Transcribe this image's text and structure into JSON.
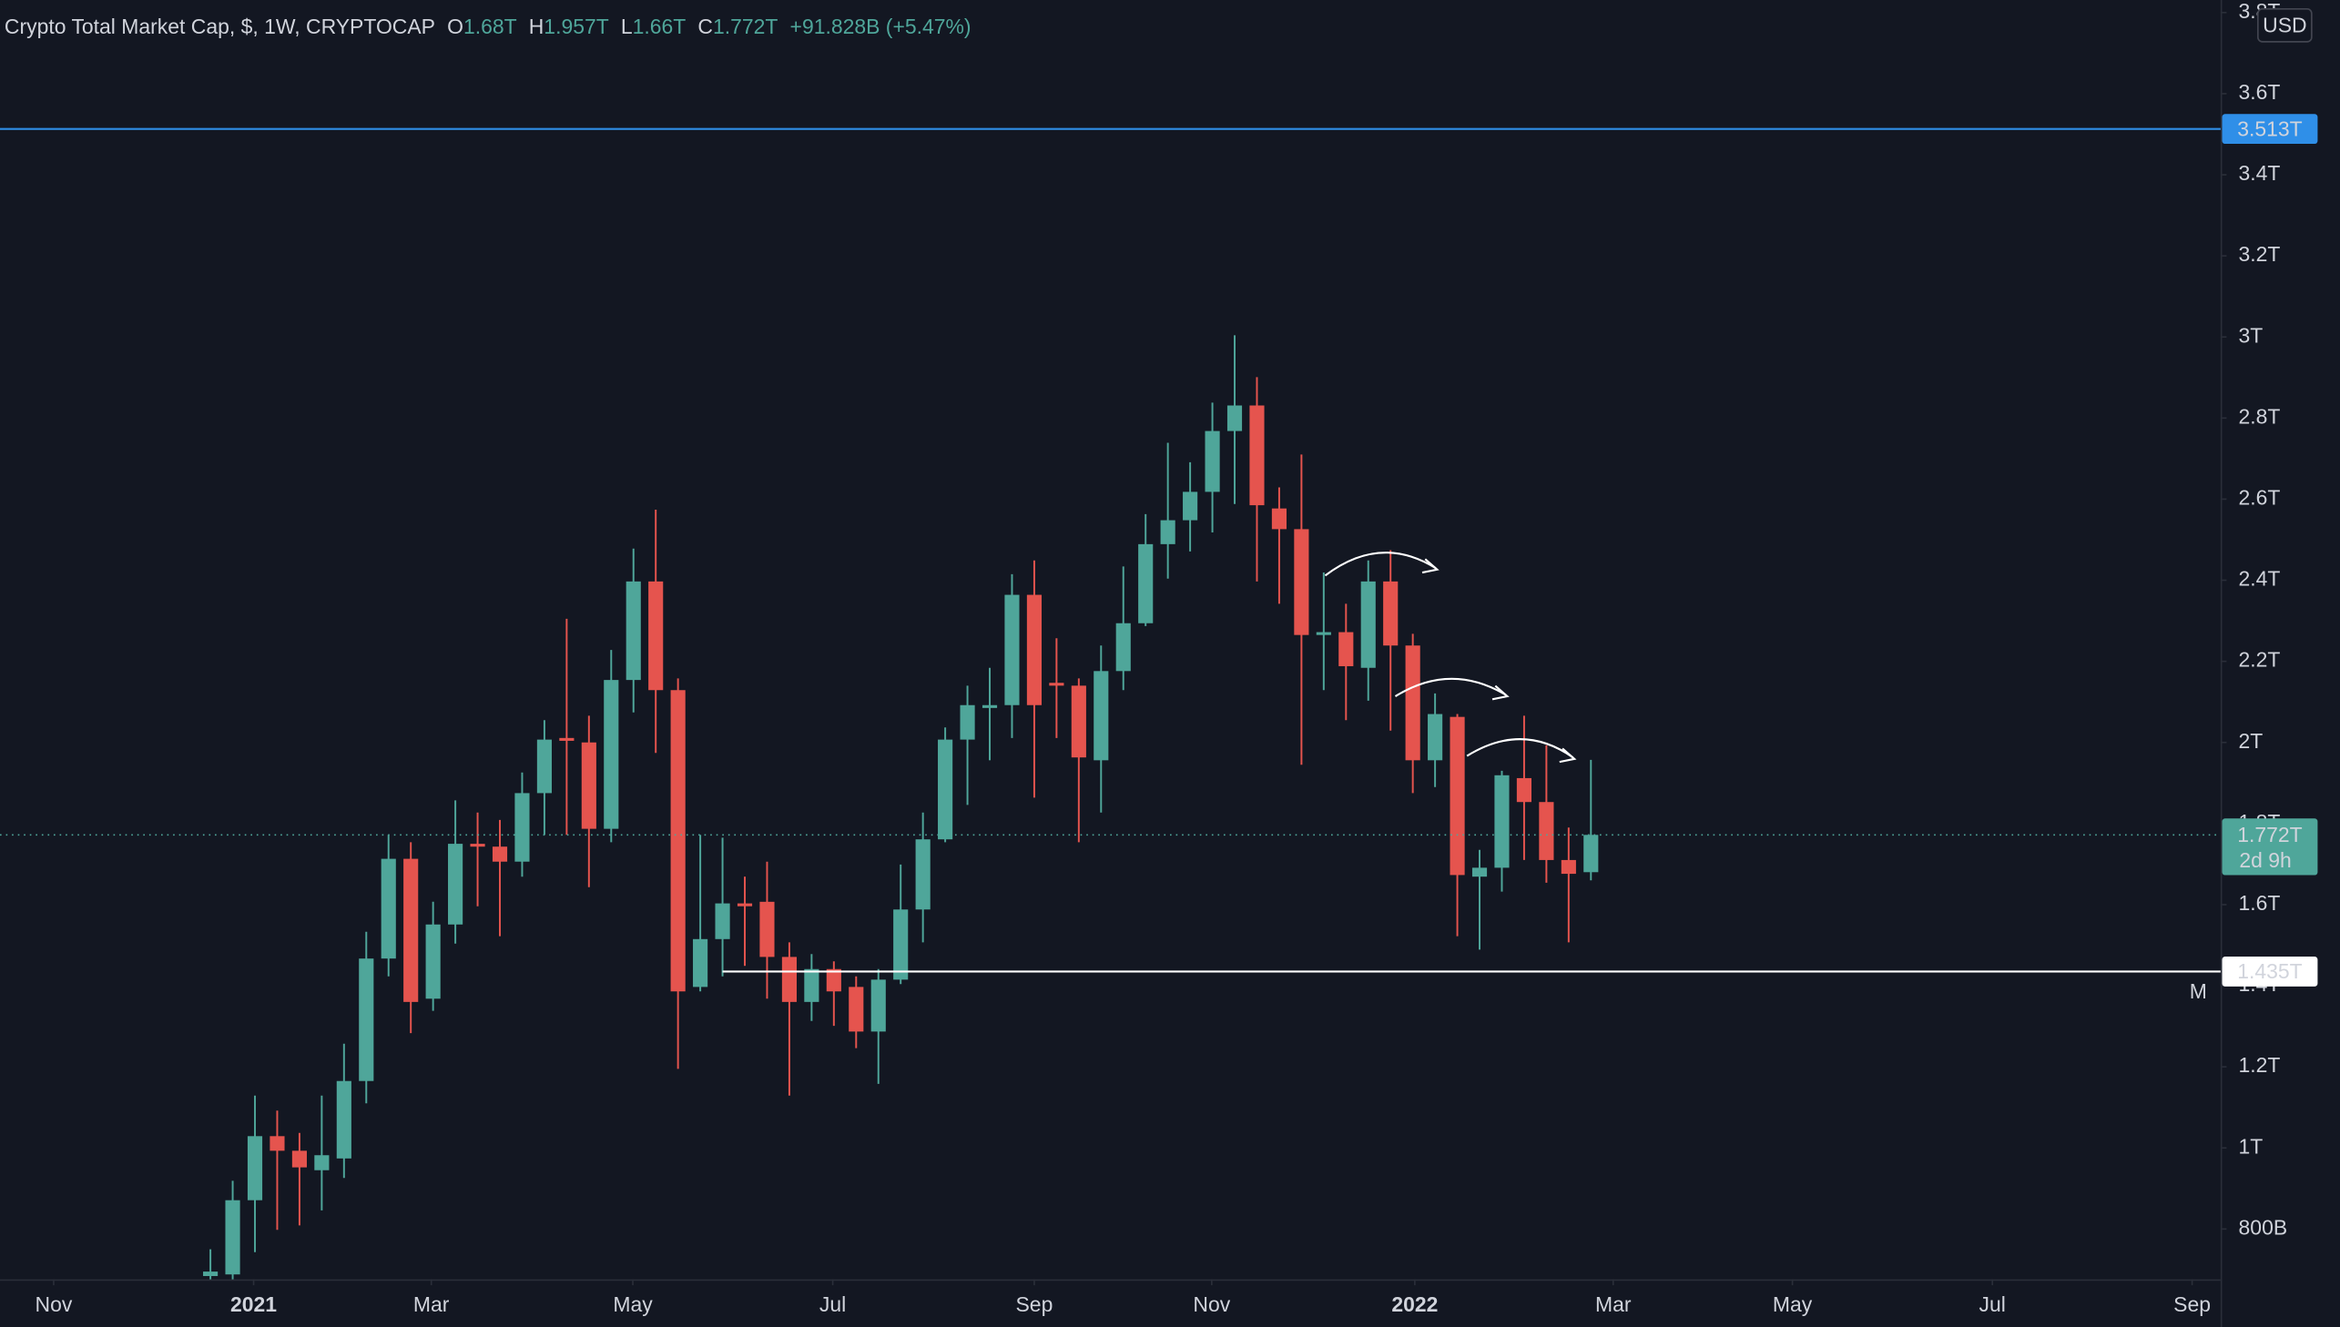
{
  "chart_data": {
    "type": "candlestick",
    "title": "Crypto Total Market Cap, $, 1W, CRYPTOCAP",
    "legend_items": [
      {
        "label": "O",
        "value": "1.68T"
      },
      {
        "label": "H",
        "value": "1.957T"
      },
      {
        "label": "L",
        "value": "1.66T"
      },
      {
        "label": "C",
        "value": "1.772T"
      }
    ],
    "change": "+91.828B (+5.47%)",
    "currency": "USD",
    "marker": "M",
    "up_color": "#4fa69a",
    "down_color": "#e5544e",
    "x": [
      0,
      1,
      2,
      3,
      4,
      5,
      6,
      7,
      8,
      9,
      10,
      11,
      12,
      13,
      14,
      15,
      16,
      17,
      18,
      19,
      20,
      21,
      22,
      23,
      24,
      25,
      26,
      27,
      28,
      29,
      30,
      31,
      32,
      33,
      34,
      35,
      36,
      37,
      38,
      39,
      40,
      41,
      42,
      43,
      44,
      45,
      46,
      47,
      48,
      49,
      50,
      51,
      52,
      53,
      54,
      55,
      56,
      57,
      58,
      59,
      60,
      61,
      62
    ],
    "open": [
      0.684,
      0.688,
      0.871,
      1.029,
      0.993,
      0.945,
      0.974,
      1.165,
      1.467,
      1.713,
      1.368,
      1.551,
      1.75,
      1.743,
      1.706,
      1.875,
      2.011,
      2.0,
      1.787,
      2.154,
      2.397,
      2.129,
      1.397,
      1.515,
      1.603,
      1.607,
      1.471,
      1.36,
      1.441,
      1.397,
      1.287,
      1.415,
      1.588,
      1.761,
      2.007,
      2.085,
      2.092,
      2.364,
      2.147,
      2.14,
      1.956,
      2.176,
      2.294,
      2.489,
      2.548,
      2.618,
      2.768,
      2.831,
      2.577,
      2.526,
      2.265,
      2.272,
      2.184,
      2.397,
      2.239,
      1.956,
      2.063,
      1.669,
      1.691,
      1.912,
      1.853,
      1.71,
      1.68
    ],
    "high": [
      0.75,
      0.919,
      1.129,
      1.092,
      1.037,
      1.129,
      1.257,
      1.533,
      1.772,
      1.754,
      1.607,
      1.857,
      1.827,
      1.809,
      1.926,
      2.055,
      2.305,
      2.066,
      2.228,
      2.478,
      2.574,
      2.158,
      1.772,
      1.765,
      1.669,
      1.706,
      1.507,
      1.478,
      1.46,
      1.423,
      1.441,
      1.699,
      1.827,
      2.037,
      2.14,
      2.184,
      2.415,
      2.449,
      2.257,
      2.158,
      2.239,
      2.434,
      2.563,
      2.739,
      2.691,
      2.838,
      3.004,
      2.901,
      2.629,
      2.71,
      2.419,
      2.342,
      2.449,
      2.474,
      2.268,
      2.121,
      2.07,
      1.735,
      1.93,
      2.066,
      1.993,
      1.79,
      1.957
    ],
    "low": [
      0.676,
      0.676,
      0.743,
      0.798,
      0.809,
      0.846,
      0.926,
      1.11,
      1.423,
      1.283,
      1.338,
      1.504,
      1.596,
      1.522,
      1.669,
      1.772,
      1.772,
      1.643,
      1.754,
      2.074,
      1.974,
      1.195,
      1.386,
      1.423,
      1.449,
      1.368,
      1.129,
      1.313,
      1.301,
      1.246,
      1.158,
      1.404,
      1.507,
      1.754,
      1.846,
      1.956,
      2.011,
      1.864,
      2.011,
      1.754,
      1.827,
      2.129,
      2.287,
      2.404,
      2.471,
      2.518,
      2.588,
      2.397,
      2.342,
      1.945,
      2.129,
      2.055,
      2.103,
      2.029,
      1.875,
      1.89,
      1.522,
      1.489,
      1.632,
      1.71,
      1.654,
      1.507,
      1.66
    ],
    "close": [
      0.695,
      0.871,
      1.029,
      0.993,
      0.952,
      0.982,
      1.165,
      1.467,
      1.713,
      1.36,
      1.551,
      1.75,
      1.743,
      1.706,
      1.875,
      2.007,
      2.004,
      1.787,
      2.154,
      2.397,
      2.129,
      1.386,
      1.515,
      1.603,
      1.596,
      1.471,
      1.36,
      1.441,
      1.386,
      1.287,
      1.415,
      1.588,
      1.761,
      2.007,
      2.092,
      2.092,
      2.364,
      2.092,
      2.14,
      1.963,
      2.176,
      2.294,
      2.489,
      2.548,
      2.618,
      2.768,
      2.831,
      2.585,
      2.526,
      2.265,
      2.272,
      2.188,
      2.397,
      2.239,
      1.956,
      2.07,
      1.673,
      1.691,
      1.919,
      1.853,
      1.71,
      1.676,
      1.772
    ],
    "xlim": [
      -9.45,
      90.28
    ],
    "xticks": [
      {
        "value": -7.04,
        "label": "Nov"
      },
      {
        "value": 1.94,
        "label": "2021"
      },
      {
        "value": 9.92,
        "label": "Mar"
      },
      {
        "value": 18.97,
        "label": "May"
      },
      {
        "value": 27.95,
        "label": "Jul"
      },
      {
        "value": 37.0,
        "label": "Sep"
      },
      {
        "value": 44.97,
        "label": "Nov"
      },
      {
        "value": 54.09,
        "label": "2022"
      },
      {
        "value": 63.0,
        "label": "Mar"
      },
      {
        "value": 71.05,
        "label": "May"
      },
      {
        "value": 80.03,
        "label": "Jul"
      },
      {
        "value": 89.0,
        "label": "Sep"
      }
    ],
    "ylim": [
      0.676,
      3.831
    ],
    "yticks": [
      {
        "value": 0.8,
        "label": "800B"
      },
      {
        "value": 1,
        "label": "1T"
      },
      {
        "value": 1.2,
        "label": "1.2T"
      },
      {
        "value": 1.4,
        "label": "1.4T"
      },
      {
        "value": 1.6,
        "label": "1.6T"
      },
      {
        "value": 1.8,
        "label": "1.8T"
      },
      {
        "value": 2,
        "label": "2T"
      },
      {
        "value": 2.2,
        "label": "2.2T"
      },
      {
        "value": 2.4,
        "label": "2.4T"
      },
      {
        "value": 2.6,
        "label": "2.6T"
      },
      {
        "value": 2.8,
        "label": "2.8T"
      },
      {
        "value": 3,
        "label": "3T"
      },
      {
        "value": 3.2,
        "label": "3.2T"
      },
      {
        "value": 3.4,
        "label": "3.4T"
      },
      {
        "value": 3.6,
        "label": "3.6T"
      },
      {
        "value": 3.8,
        "label": "3.8T"
      }
    ],
    "levels": [
      {
        "value": 3.513,
        "label": "3.513T",
        "color": "#2f8fe8"
      },
      {
        "value": 1.435,
        "label": "1.435T",
        "color": "#ffffff",
        "x_start": 23
      }
    ],
    "last_price": {
      "value": 1.772,
      "label": "1.772T",
      "countdown": "2d 9h"
    }
  }
}
